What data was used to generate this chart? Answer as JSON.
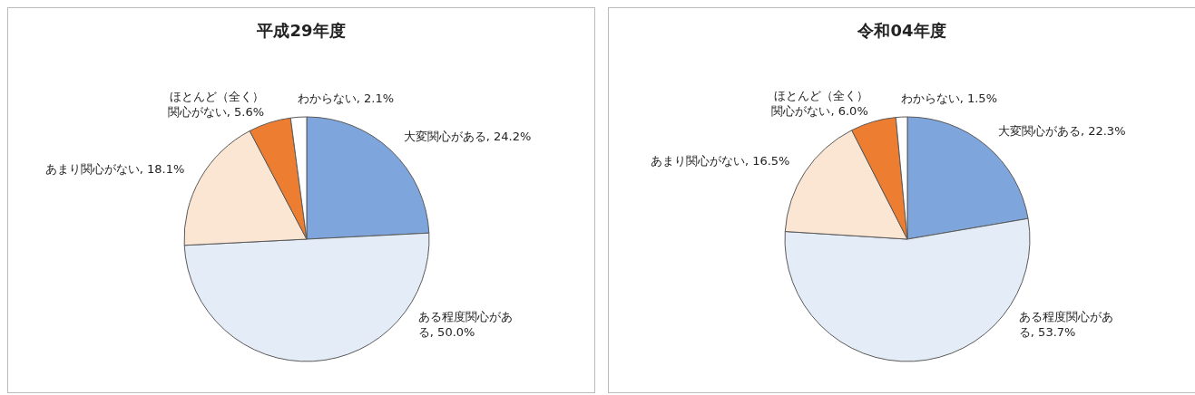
{
  "chart_data": [
    {
      "type": "pie",
      "title": "平成29年度",
      "categories": [
        "大変関心がある",
        "ある程度関心がある",
        "あまり関心がない",
        "ほとんど（全く）関心がない",
        "わからない"
      ],
      "values": [
        24.2,
        50.0,
        18.1,
        5.6,
        2.1
      ],
      "value_labels": [
        "24.2%",
        "50.0%",
        "18.1%",
        "5.6%",
        "2.1%"
      ],
      "colors": [
        "#7ea6dc",
        "#e3ecf7",
        "#fbe5d3",
        "#ed7d31",
        "#ffffff"
      ]
    },
    {
      "type": "pie",
      "title": "令和04年度",
      "categories": [
        "大変関心がある",
        "ある程度関心がある",
        "あまり関心がない",
        "ほとんど（全く）関心がない",
        "わからない"
      ],
      "values": [
        22.3,
        53.7,
        16.5,
        6.0,
        1.5
      ],
      "value_labels": [
        "22.3%",
        "53.7%",
        "16.5%",
        "6.0%",
        "1.5%"
      ],
      "colors": [
        "#7ea6dc",
        "#e3ecf7",
        "#fbe5d3",
        "#ed7d31",
        "#ffffff"
      ]
    }
  ]
}
